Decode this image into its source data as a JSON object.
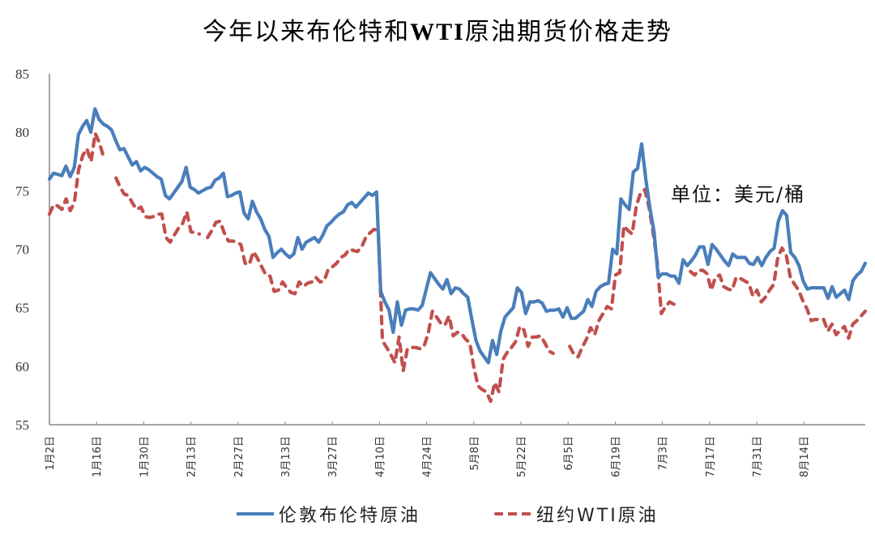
{
  "title_pre": "今年以来布伦特和",
  "title_bold": "WTI",
  "title_post": "原油期货价格走势",
  "unit_label": "单位：美元/桶",
  "legend": {
    "brent": "伦敦布伦特原油",
    "wti": "纽约WTI原油"
  },
  "colors": {
    "brent": "#4a7ebb",
    "wti": "#c0504d",
    "axis": "#868686"
  },
  "chart_data": {
    "type": "line",
    "title": "今年以来布伦特和WTI原油期货价格走势",
    "xlabel": "",
    "ylabel": "美元/桶",
    "ylim": [
      55,
      85
    ],
    "yticks": [
      55,
      60,
      65,
      70,
      75,
      80,
      85
    ],
    "xticks": [
      "1月2日",
      "1月16日",
      "1月30日",
      "2月13日",
      "2月27日",
      "3月13日",
      "3月27日",
      "4月10日",
      "4月24日",
      "5月8日",
      "5月22日",
      "6月5日",
      "6月19日",
      "7月3日",
      "7月17日",
      "7月31日",
      "8月14日"
    ],
    "grid": false,
    "legend_position": "bottom",
    "series": [
      {
        "name": "伦敦布伦特原油",
        "style": "solid",
        "values": [
          76.0,
          76.5,
          76.4,
          76.3,
          77.1,
          76.2,
          77.0,
          79.8,
          80.5,
          81.0,
          80.0,
          82.0,
          81.1,
          80.7,
          80.5,
          80.2,
          79.3,
          78.5,
          78.6,
          77.9,
          77.2,
          77.5,
          76.7,
          77.0,
          76.8,
          76.5,
          76.2,
          76.0,
          74.6,
          74.3,
          74.8,
          75.3,
          75.8,
          77.0,
          75.3,
          75.1,
          74.8,
          75.0,
          75.2,
          75.3,
          75.9,
          76.1,
          76.5,
          74.5,
          74.6,
          74.8,
          74.9,
          73.1,
          72.6,
          74.1,
          73.2,
          72.6,
          71.7,
          71.1,
          69.3,
          69.7,
          70.0,
          69.6,
          69.3,
          69.6,
          71.0,
          70.0,
          70.6,
          70.8,
          71.0,
          70.6,
          71.2,
          72.0,
          72.3,
          72.7,
          73.0,
          73.2,
          73.8,
          74.0,
          73.6,
          74.0,
          74.4,
          74.8,
          74.6,
          74.9,
          66.4,
          65.5,
          64.8,
          62.9,
          65.5,
          63.5,
          64.8,
          64.9,
          64.9,
          64.8,
          65.2,
          66.6,
          68.0,
          67.5,
          67.0,
          66.6,
          67.4,
          66.2,
          66.7,
          66.6,
          66.2,
          65.9,
          64.0,
          62.2,
          61.3,
          60.8,
          60.3,
          62.2,
          61.0,
          63.0,
          64.2,
          64.6,
          65.0,
          66.7,
          66.3,
          64.5,
          65.5,
          65.5,
          65.6,
          65.4,
          64.7,
          64.8,
          64.8,
          64.9,
          64.2,
          65.0,
          64.1,
          64.1,
          64.4,
          64.7,
          65.7,
          65.1,
          66.4,
          66.8,
          67.0,
          67.1,
          70.0,
          69.6,
          74.3,
          73.8,
          73.4,
          76.6,
          76.9,
          79.0,
          76.0,
          73.5,
          71.5,
          67.6,
          67.9,
          67.9,
          67.7,
          67.7,
          67.1,
          69.1,
          68.6,
          69.0,
          69.5,
          70.2,
          70.2,
          68.7,
          70.4,
          70.0,
          69.5,
          69.0,
          68.6,
          69.6,
          69.3,
          69.3,
          69.3,
          68.8,
          68.7,
          69.3,
          68.6,
          69.3,
          69.8,
          70.1,
          72.4,
          73.3,
          72.9,
          69.7,
          69.3,
          68.6,
          67.3,
          66.6,
          66.7,
          66.7,
          66.7,
          66.7,
          65.8,
          66.8,
          65.9,
          66.2,
          66.5,
          65.7,
          67.3,
          67.8,
          68.1,
          68.8
        ]
      },
      {
        "name": "纽约WTI原油",
        "style": "dashed",
        "values": [
          73.0,
          73.8,
          73.7,
          73.4,
          74.3,
          73.3,
          74.0,
          76.8,
          78.0,
          78.6,
          77.5,
          79.9,
          79.1,
          77.9,
          null,
          null,
          76.1,
          75.3,
          74.7,
          74.6,
          73.9,
          73.4,
          73.6,
          72.8,
          72.7,
          72.8,
          73.0,
          73.0,
          71.0,
          70.6,
          71.2,
          71.8,
          72.2,
          73.2,
          71.5,
          71.4,
          71.3,
          null,
          71.0,
          71.6,
          72.3,
          72.4,
          71.4,
          70.7,
          70.7,
          70.6,
          70.4,
          68.8,
          68.7,
          69.8,
          69.2,
          68.5,
          67.8,
          67.7,
          66.4,
          66.5,
          67.2,
          66.7,
          66.3,
          66.2,
          67.2,
          66.8,
          67.1,
          67.2,
          67.6,
          67.2,
          67.3,
          68.3,
          68.5,
          68.8,
          69.3,
          69.5,
          70.0,
          69.9,
          69.8,
          70.2,
          71.0,
          71.4,
          71.7,
          71.6,
          62.2,
          61.6,
          61.0,
          60.3,
          62.5,
          59.6,
          61.5,
          61.6,
          61.6,
          61.5,
          61.7,
          62.8,
          64.7,
          64.2,
          63.7,
          63.5,
          64.3,
          62.6,
          62.9,
          62.8,
          62.3,
          62.0,
          59.8,
          58.3,
          58.0,
          57.8,
          57.0,
          58.6,
          57.8,
          60.6,
          61.2,
          61.6,
          62.1,
          63.4,
          63.1,
          61.7,
          62.5,
          62.5,
          62.6,
          62.0,
          61.3,
          61.1,
          null,
          null,
          null,
          61.7,
          61.0,
          60.8,
          61.6,
          62.3,
          63.3,
          62.7,
          63.9,
          64.5,
          65.1,
          64.9,
          67.8,
          68.0,
          72.0,
          71.6,
          71.3,
          73.7,
          74.8,
          75.1,
          73.7,
          71.5,
          69.0,
          64.5,
          65.1,
          65.5,
          65.3,
          65.1,
          null,
          null,
          68.1,
          67.8,
          68.2,
          68.2,
          67.9,
          66.5,
          67.6,
          67.8,
          66.8,
          66.6,
          66.5,
          67.6,
          67.5,
          67.3,
          67.1,
          66.0,
          66.5,
          65.5,
          65.9,
          66.5,
          67.0,
          69.3,
          70.1,
          69.5,
          67.6,
          67.0,
          66.5,
          65.6,
          64.9,
          63.9,
          64.0,
          64.0,
          64.0,
          63.0,
          63.6,
          62.7,
          63.1,
          63.4,
          62.4,
          63.6,
          63.9,
          64.3,
          64.7
        ]
      }
    ]
  }
}
